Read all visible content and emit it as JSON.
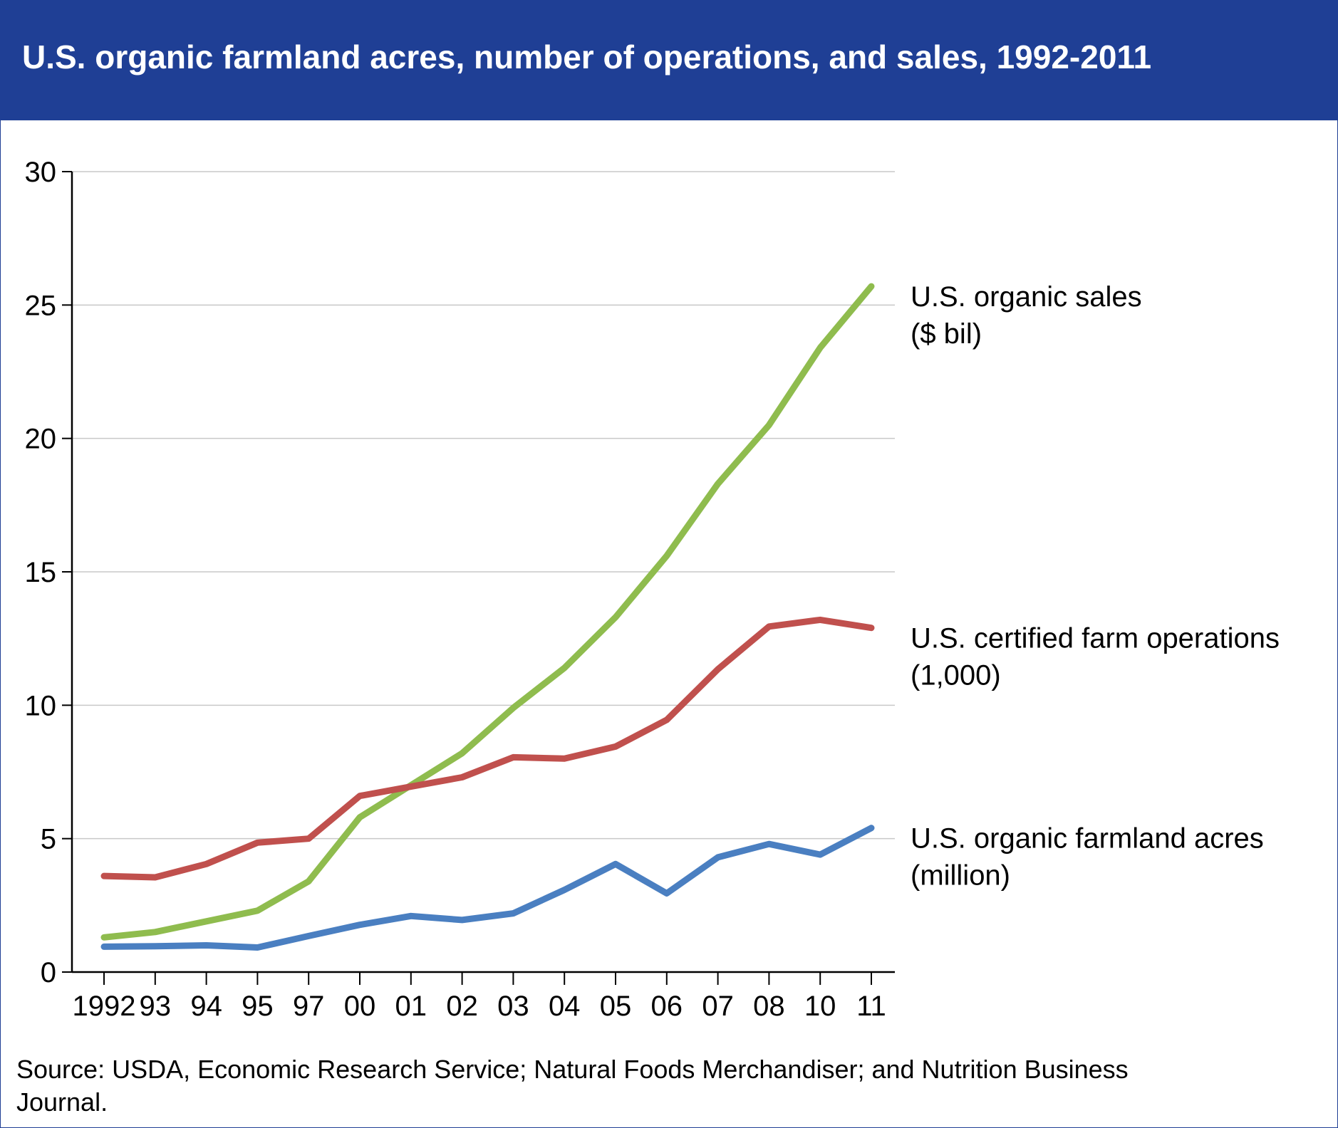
{
  "title": "U.S. organic farmland acres, number of operations, and sales, 1992-2011",
  "source": "Source: USDA, Economic Research Service; Natural Foods Merchandiser; and Nutrition Business Journal.",
  "colors": {
    "header_background": "#1f3f95",
    "sales": "#8fbc4e",
    "operations": "#c0504d",
    "acres": "#4a7fc1",
    "gridline": "#c8c8c8"
  },
  "chart_data": {
    "type": "line",
    "title": "U.S. organic farmland acres, number of operations, and sales, 1992-2011",
    "xlabel": "",
    "ylabel": "",
    "ylim": [
      0,
      30
    ],
    "yticks": [
      0,
      5,
      10,
      15,
      20,
      25,
      30
    ],
    "grid": true,
    "legend": "inline labels at right end of lines",
    "categories": [
      "1992",
      "93",
      "94",
      "95",
      "97",
      "00",
      "01",
      "02",
      "03",
      "04",
      "05",
      "06",
      "07",
      "08",
      "10",
      "11"
    ],
    "series": [
      {
        "name": "U.S. organic sales ($ bil)",
        "label_lines": [
          "U.S. organic sales",
          "($ bil)"
        ],
        "color": "#8fbc4e",
        "values": [
          1.3,
          1.5,
          1.9,
          2.3,
          3.4,
          5.8,
          7.0,
          8.2,
          9.9,
          11.4,
          13.3,
          15.6,
          18.3,
          20.5,
          23.4,
          25.7
        ]
      },
      {
        "name": "U.S. certified farm operations (1,000)",
        "label_lines": [
          "U.S. certified farm operations",
          "(1,000)"
        ],
        "color": "#c0504d",
        "values": [
          3.6,
          3.55,
          4.05,
          4.85,
          5.0,
          6.6,
          6.95,
          7.3,
          8.05,
          8.0,
          8.45,
          9.45,
          11.35,
          12.95,
          13.2,
          12.9
        ]
      },
      {
        "name": "U.S. organic farmland acres (million)",
        "label_lines": [
          "U.S. organic farmland acres",
          "(million)"
        ],
        "color": "#4a7fc1",
        "values": [
          0.95,
          0.97,
          1.0,
          0.92,
          1.35,
          1.77,
          2.1,
          1.95,
          2.2,
          3.08,
          4.05,
          2.95,
          4.3,
          4.8,
          4.4,
          5.4
        ]
      }
    ]
  }
}
